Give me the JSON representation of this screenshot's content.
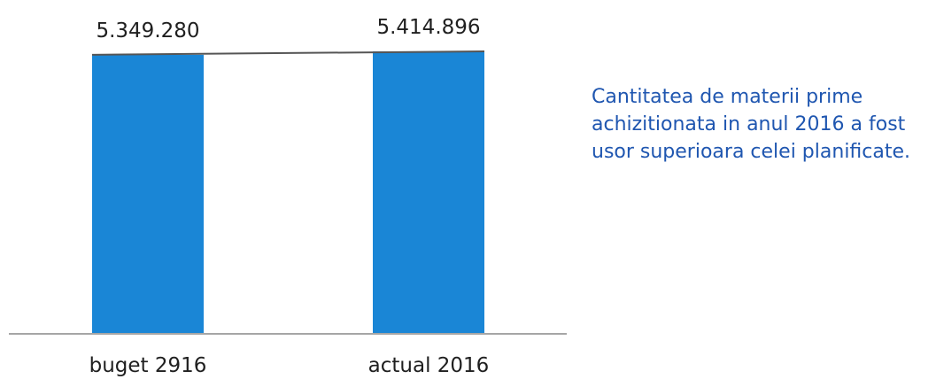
{
  "chart_data": {
    "type": "bar",
    "categories": [
      "buget 2916",
      "actual 2016"
    ],
    "values": [
      5349280,
      5414896
    ],
    "data_labels": [
      "5.349.280",
      "5.414.896"
    ],
    "bar_color": "#1a86d6",
    "grid": false,
    "axis_line_color": "#a6a6a6",
    "connector_line": true
  },
  "note": {
    "lines": [
      "Cantitatea de materii prime",
      "achizitionata in anul 2016 a fost",
      "usor superioara celei planificate."
    ],
    "color": "#1f56b0"
  }
}
